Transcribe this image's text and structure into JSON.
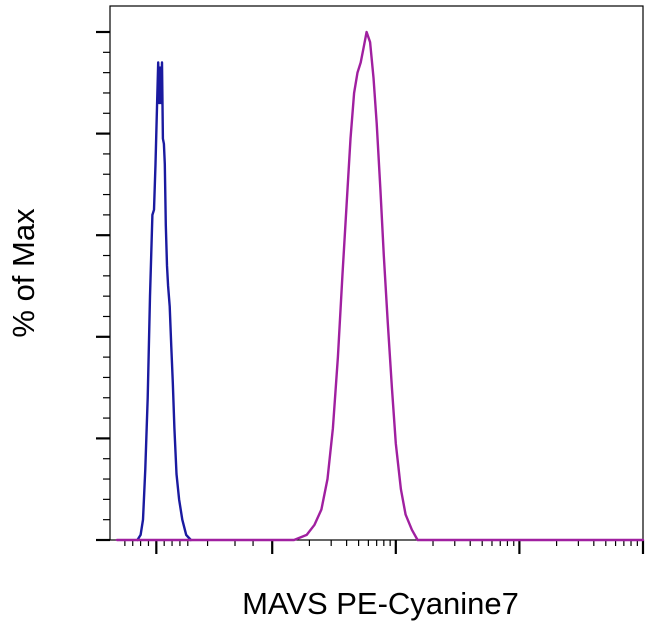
{
  "chart_data": {
    "type": "line",
    "title": "",
    "xlabel": "MAVS PE-Cyanine7",
    "ylabel": "% of Max",
    "x_scale": "log",
    "xlim": [
      -250,
      1000000
    ],
    "ylim": [
      0,
      100
    ],
    "grid": false,
    "legend": "none",
    "y_major_ticks": [
      0,
      20,
      40,
      60,
      80,
      100
    ],
    "x_major_ticks": [
      0,
      1000,
      10000,
      100000,
      1000000
    ],
    "show_tick_labels": false,
    "series": [
      {
        "color": "#1a1aa0",
        "points": [
          [
            -120,
            0
          ],
          [
            -100,
            1
          ],
          [
            -85,
            4
          ],
          [
            -70,
            14
          ],
          [
            -55,
            28
          ],
          [
            -40,
            48
          ],
          [
            -25,
            64
          ],
          [
            -15,
            65
          ],
          [
            -5,
            74
          ],
          [
            5,
            86
          ],
          [
            12,
            94
          ],
          [
            18,
            86
          ],
          [
            24,
            93
          ],
          [
            30,
            86
          ],
          [
            36,
            94
          ],
          [
            42,
            79
          ],
          [
            48,
            78
          ],
          [
            54,
            74
          ],
          [
            60,
            62
          ],
          [
            68,
            54
          ],
          [
            75,
            50
          ],
          [
            85,
            46
          ],
          [
            95,
            38
          ],
          [
            105,
            31
          ],
          [
            115,
            22
          ],
          [
            128,
            13
          ],
          [
            145,
            8
          ],
          [
            165,
            4
          ],
          [
            190,
            1
          ],
          [
            220,
            0
          ]
        ]
      },
      {
        "color": "#a020a0",
        "points": [
          [
            -250,
            0
          ],
          [
            150,
            0
          ],
          [
            500,
            0
          ],
          [
            1500,
            0
          ],
          [
            1900,
            1
          ],
          [
            2200,
            3
          ],
          [
            2500,
            6
          ],
          [
            2800,
            12
          ],
          [
            3100,
            22
          ],
          [
            3400,
            36
          ],
          [
            3700,
            52
          ],
          [
            4000,
            66
          ],
          [
            4300,
            79
          ],
          [
            4600,
            88
          ],
          [
            4900,
            92
          ],
          [
            5200,
            94
          ],
          [
            5500,
            97
          ],
          [
            5800,
            100
          ],
          [
            6200,
            98
          ],
          [
            6600,
            91
          ],
          [
            7000,
            82
          ],
          [
            7500,
            69
          ],
          [
            8000,
            56
          ],
          [
            8600,
            43
          ],
          [
            9300,
            30
          ],
          [
            10000,
            19
          ],
          [
            11000,
            10
          ],
          [
            12000,
            5
          ],
          [
            13500,
            2
          ],
          [
            15000,
            0
          ],
          [
            50000,
            0
          ],
          [
            200000,
            0
          ],
          [
            1000000,
            0
          ]
        ]
      }
    ]
  }
}
